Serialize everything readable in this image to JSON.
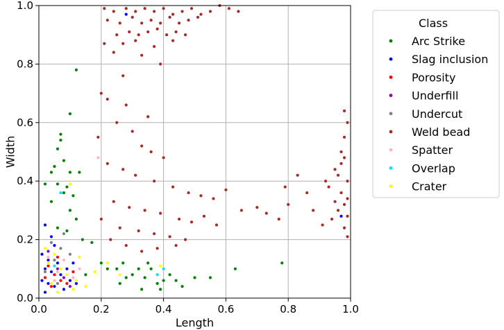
{
  "chart_data": {
    "type": "scatter",
    "title": "",
    "xlabel": "Length",
    "ylabel": "Width",
    "xlim": [
      0,
      1
    ],
    "ylim": [
      0,
      1
    ],
    "xticks": [
      "0.0",
      "0.2",
      "0.4",
      "0.6",
      "0.8",
      "1.0"
    ],
    "yticks": [
      "0.0",
      "0.2",
      "0.4",
      "0.6",
      "0.8",
      "1.0"
    ],
    "grid": true,
    "legend": {
      "title": "Class",
      "placement": "outside-right"
    },
    "series": [
      {
        "name": "Arc Strike",
        "color": "#008000",
        "points": [
          [
            0.12,
            0.78
          ],
          [
            0.1,
            0.63
          ],
          [
            0.07,
            0.56
          ],
          [
            0.07,
            0.54
          ],
          [
            0.06,
            0.51
          ],
          [
            0.08,
            0.47
          ],
          [
            0.05,
            0.45
          ],
          [
            0.04,
            0.43
          ],
          [
            0.1,
            0.43
          ],
          [
            0.13,
            0.43
          ],
          [
            0.02,
            0.39
          ],
          [
            0.06,
            0.39
          ],
          [
            0.09,
            0.38
          ],
          [
            0.08,
            0.36
          ],
          [
            0.11,
            0.35
          ],
          [
            0.04,
            0.33
          ],
          [
            0.1,
            0.3
          ],
          [
            0.12,
            0.27
          ],
          [
            0.06,
            0.24
          ],
          [
            0.09,
            0.23
          ],
          [
            0.14,
            0.2
          ],
          [
            0.17,
            0.19
          ],
          [
            0.2,
            0.12
          ],
          [
            0.22,
            0.1
          ],
          [
            0.25,
            0.1
          ],
          [
            0.27,
            0.12
          ],
          [
            0.3,
            0.08
          ],
          [
            0.32,
            0.1
          ],
          [
            0.34,
            0.07
          ],
          [
            0.36,
            0.1
          ],
          [
            0.38,
            0.05
          ],
          [
            0.4,
            0.06
          ],
          [
            0.42,
            0.08
          ],
          [
            0.44,
            0.06
          ],
          [
            0.46,
            0.04
          ],
          [
            0.5,
            0.07
          ],
          [
            0.55,
            0.07
          ],
          [
            0.63,
            0.1
          ],
          [
            0.78,
            0.12
          ],
          [
            0.33,
            0.03
          ],
          [
            0.39,
            0.03
          ],
          [
            0.26,
            0.05
          ],
          [
            0.28,
            0.07
          ],
          [
            0.35,
            0.12
          ],
          [
            0.15,
            0.08
          ]
        ]
      },
      {
        "name": "Slag inclusion",
        "color": "#0000ff",
        "points": [
          [
            0.02,
            0.25
          ],
          [
            0.04,
            0.21
          ],
          [
            0.05,
            0.18
          ],
          [
            0.01,
            0.15
          ],
          [
            0.03,
            0.13
          ],
          [
            0.06,
            0.12
          ],
          [
            0.02,
            0.1
          ],
          [
            0.04,
            0.09
          ],
          [
            0.07,
            0.08
          ],
          [
            0.01,
            0.06
          ],
          [
            0.03,
            0.05
          ],
          [
            0.05,
            0.04
          ],
          [
            0.08,
            0.03
          ],
          [
            0.1,
            0.06
          ],
          [
            0.12,
            0.05
          ],
          [
            0.02,
            0.02
          ],
          [
            0.06,
            0.02
          ],
          [
            0.09,
            0.1
          ],
          [
            0.11,
            0.12
          ],
          [
            0.28,
            0.97
          ],
          [
            0.97,
            0.28
          ]
        ]
      },
      {
        "name": "Porosity",
        "color": "#ff0000",
        "points": [
          [
            0.03,
            0.11
          ],
          [
            0.05,
            0.08
          ],
          [
            0.02,
            0.07
          ],
          [
            0.07,
            0.06
          ],
          [
            0.04,
            0.04
          ],
          [
            0.09,
            0.05
          ],
          [
            0.11,
            0.09
          ],
          [
            0.06,
            0.14
          ]
        ]
      },
      {
        "name": "Underfill",
        "color": "#8a00c0",
        "points": [
          [
            0.03,
            0.16
          ],
          [
            0.06,
            0.1
          ],
          [
            0.08,
            0.07
          ],
          [
            0.1,
            0.04
          ]
        ]
      },
      {
        "name": "Undercut",
        "color": "#808080",
        "points": [
          [
            0.04,
            0.19
          ],
          [
            0.07,
            0.17
          ],
          [
            0.05,
            0.13
          ],
          [
            0.02,
            0.09
          ],
          [
            0.09,
            0.08
          ],
          [
            0.06,
            0.05
          ],
          [
            0.1,
            0.15
          ],
          [
            0.08,
            0.22
          ]
        ]
      },
      {
        "name": "Weld bead",
        "color": "#a52a2a",
        "points": [
          [
            0.21,
            0.99
          ],
          [
            0.24,
            0.98
          ],
          [
            0.28,
            0.99
          ],
          [
            0.31,
            0.98
          ],
          [
            0.34,
            0.99
          ],
          [
            0.37,
            0.98
          ],
          [
            0.4,
            0.99
          ],
          [
            0.43,
            0.97
          ],
          [
            0.46,
            0.98
          ],
          [
            0.49,
            0.99
          ],
          [
            0.52,
            0.97
          ],
          [
            0.55,
            0.98
          ],
          [
            0.58,
            1.0
          ],
          [
            0.61,
            0.99
          ],
          [
            0.64,
            0.98
          ],
          [
            0.22,
            0.95
          ],
          [
            0.26,
            0.94
          ],
          [
            0.3,
            0.96
          ],
          [
            0.33,
            0.94
          ],
          [
            0.36,
            0.95
          ],
          [
            0.39,
            0.94
          ],
          [
            0.42,
            0.96
          ],
          [
            0.45,
            0.94
          ],
          [
            0.48,
            0.95
          ],
          [
            0.51,
            0.96
          ],
          [
            0.25,
            0.9
          ],
          [
            0.29,
            0.91
          ],
          [
            0.32,
            0.9
          ],
          [
            0.35,
            0.91
          ],
          [
            0.38,
            0.92
          ],
          [
            0.41,
            0.9
          ],
          [
            0.44,
            0.91
          ],
          [
            0.47,
            0.9
          ],
          [
            0.21,
            0.87
          ],
          [
            0.27,
            0.87
          ],
          [
            0.31,
            0.88
          ],
          [
            0.37,
            0.86
          ],
          [
            0.43,
            0.88
          ],
          [
            0.24,
            0.84
          ],
          [
            0.33,
            0.83
          ],
          [
            0.39,
            0.8
          ],
          [
            0.27,
            0.76
          ],
          [
            0.2,
            0.7
          ],
          [
            0.22,
            0.68
          ],
          [
            0.28,
            0.66
          ],
          [
            0.35,
            0.62
          ],
          [
            0.25,
            0.6
          ],
          [
            0.3,
            0.57
          ],
          [
            0.19,
            0.55
          ],
          [
            0.33,
            0.52
          ],
          [
            0.36,
            0.5
          ],
          [
            0.4,
            0.48
          ],
          [
            0.22,
            0.46
          ],
          [
            0.27,
            0.44
          ],
          [
            0.31,
            0.42
          ],
          [
            0.37,
            0.4
          ],
          [
            0.43,
            0.38
          ],
          [
            0.48,
            0.36
          ],
          [
            0.52,
            0.35
          ],
          [
            0.56,
            0.34
          ],
          [
            0.6,
            0.37
          ],
          [
            0.24,
            0.33
          ],
          [
            0.29,
            0.31
          ],
          [
            0.34,
            0.3
          ],
          [
            0.39,
            0.29
          ],
          [
            0.45,
            0.27
          ],
          [
            0.49,
            0.26
          ],
          [
            0.53,
            0.28
          ],
          [
            0.57,
            0.25
          ],
          [
            0.2,
            0.27
          ],
          [
            0.26,
            0.24
          ],
          [
            0.32,
            0.23
          ],
          [
            0.37,
            0.22
          ],
          [
            0.42,
            0.21
          ],
          [
            0.47,
            0.2
          ],
          [
            0.23,
            0.2
          ],
          [
            0.28,
            0.18
          ],
          [
            0.33,
            0.16
          ],
          [
            0.38,
            0.17
          ],
          [
            0.44,
            0.18
          ],
          [
            0.65,
            0.3
          ],
          [
            0.7,
            0.31
          ],
          [
            0.73,
            0.29
          ],
          [
            0.77,
            0.27
          ],
          [
            0.8,
            0.32
          ],
          [
            0.79,
            0.38
          ],
          [
            0.83,
            0.42
          ],
          [
            0.86,
            0.36
          ],
          [
            0.88,
            0.3
          ],
          [
            0.91,
            0.25
          ],
          [
            0.93,
            0.38
          ],
          [
            0.95,
            0.44
          ],
          [
            0.97,
            0.5
          ],
          [
            0.98,
            0.55
          ],
          [
            0.99,
            0.6
          ],
          [
            0.98,
            0.64
          ],
          [
            0.96,
            0.42
          ],
          [
            0.97,
            0.36
          ],
          [
            0.98,
            0.32
          ],
          [
            0.99,
            0.28
          ],
          [
            0.98,
            0.24
          ],
          [
            0.99,
            0.21
          ],
          [
            0.97,
            0.46
          ],
          [
            0.95,
            0.33
          ],
          [
            0.94,
            0.27
          ],
          [
            0.92,
            0.4
          ],
          [
            0.96,
            0.3
          ],
          [
            0.99,
            0.4
          ],
          [
            0.99,
            0.34
          ],
          [
            0.98,
            0.48
          ]
        ]
      },
      {
        "name": "Spatter",
        "color": "#ffb6c1",
        "points": [
          [
            0.03,
            0.14
          ],
          [
            0.06,
            0.09
          ],
          [
            0.08,
            0.13
          ],
          [
            0.11,
            0.07
          ],
          [
            0.05,
            0.06
          ],
          [
            0.19,
            0.48
          ],
          [
            0.13,
            0.1
          ]
        ]
      },
      {
        "name": "Overlap",
        "color": "#00e5ee",
        "points": [
          [
            0.07,
            0.36
          ],
          [
            0.38,
            0.08
          ],
          [
            0.4,
            0.1
          ],
          [
            0.12,
            0.06
          ],
          [
            0.05,
            0.11
          ]
        ]
      },
      {
        "name": "Crater",
        "color": "#ffff00",
        "points": [
          [
            0.1,
            0.39
          ],
          [
            0.02,
            0.17
          ],
          [
            0.05,
            0.15
          ],
          [
            0.03,
            0.12
          ],
          [
            0.07,
            0.1
          ],
          [
            0.09,
            0.08
          ],
          [
            0.12,
            0.06
          ],
          [
            0.04,
            0.05
          ],
          [
            0.15,
            0.04
          ],
          [
            0.18,
            0.09
          ],
          [
            0.22,
            0.12
          ],
          [
            0.26,
            0.08
          ],
          [
            0.11,
            0.03
          ],
          [
            0.06,
            0.02
          ],
          [
            0.13,
            0.14
          ],
          [
            0.39,
            0.11
          ]
        ]
      }
    ]
  }
}
